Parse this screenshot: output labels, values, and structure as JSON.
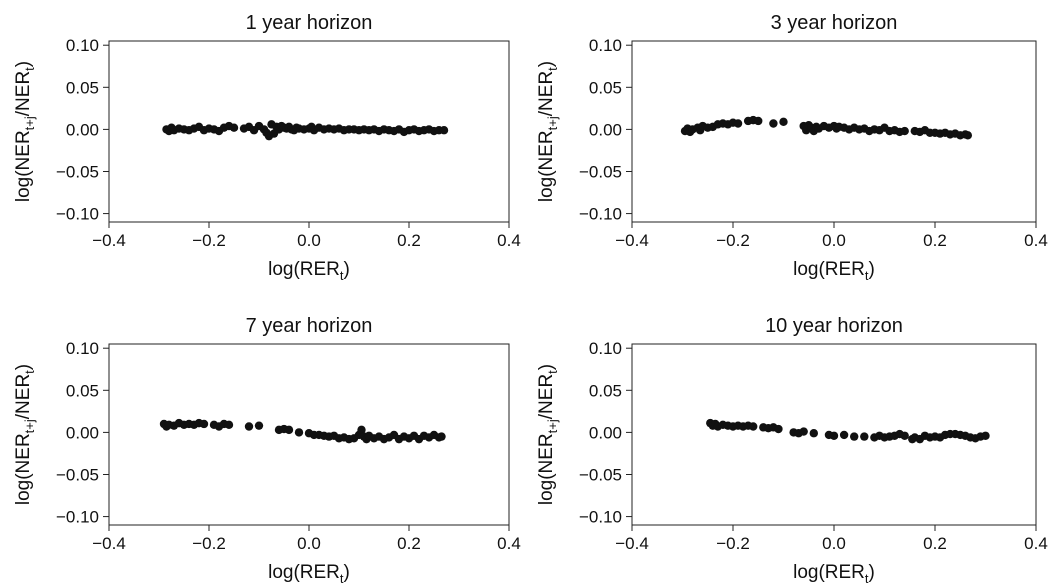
{
  "figure": {
    "xlabel_main": "log(RER",
    "xlabel_sub": "t",
    "xlabel_end": ")",
    "ylabel_main1": "log(NER",
    "ylabel_sub1": "t+j",
    "ylabel_mid": "/NER",
    "ylabel_sub2": "t",
    "ylabel_end": ")"
  },
  "chart_data": [
    {
      "type": "scatter",
      "title": "1 year horizon",
      "xlim": [
        -0.4,
        0.4
      ],
      "ylim": [
        -0.11,
        0.105
      ],
      "xticks": [
        -0.4,
        -0.2,
        0.0,
        0.2,
        0.4
      ],
      "xtick_labels": [
        "−0.4",
        "−0.2",
        "0.0",
        "0.2",
        "0.4"
      ],
      "yticks": [
        0.1,
        0.05,
        0.0,
        -0.05,
        -0.1
      ],
      "ytick_labels": [
        "0.10",
        "0.05",
        "0.00",
        "−0.05",
        "−0.10"
      ],
      "grid": false,
      "points": [
        [
          -0.285,
          0.0
        ],
        [
          -0.28,
          -0.002
        ],
        [
          -0.275,
          0.002
        ],
        [
          -0.27,
          -0.001
        ],
        [
          -0.26,
          0.001
        ],
        [
          -0.25,
          0.0
        ],
        [
          -0.24,
          -0.001
        ],
        [
          -0.23,
          0.001
        ],
        [
          -0.22,
          0.003
        ],
        [
          -0.21,
          -0.001
        ],
        [
          -0.2,
          0.001
        ],
        [
          -0.19,
          0.0
        ],
        [
          -0.18,
          -0.002
        ],
        [
          -0.17,
          0.002
        ],
        [
          -0.16,
          0.004
        ],
        [
          -0.15,
          0.002
        ],
        [
          -0.13,
          0.001
        ],
        [
          -0.12,
          0.003
        ],
        [
          -0.11,
          -0.001
        ],
        [
          -0.1,
          0.004
        ],
        [
          -0.09,
          0.0
        ],
        [
          -0.085,
          -0.004
        ],
        [
          -0.08,
          -0.008
        ],
        [
          -0.075,
          0.006
        ],
        [
          -0.07,
          -0.005
        ],
        [
          -0.065,
          0.003
        ],
        [
          -0.06,
          0.0
        ],
        [
          -0.055,
          0.004
        ],
        [
          -0.05,
          0.002
        ],
        [
          -0.045,
          0.001
        ],
        [
          -0.04,
          0.003
        ],
        [
          -0.035,
          0.0
        ],
        [
          -0.03,
          -0.001
        ],
        [
          -0.025,
          0.002
        ],
        [
          -0.02,
          0.001
        ],
        [
          -0.01,
          0.0
        ],
        [
          0.0,
          0.001
        ],
        [
          0.005,
          0.003
        ],
        [
          0.01,
          -0.001
        ],
        [
          0.02,
          0.002
        ],
        [
          0.03,
          0.0
        ],
        [
          0.04,
          0.001
        ],
        [
          0.05,
          0.0
        ],
        [
          0.06,
          0.001
        ],
        [
          0.07,
          -0.001
        ],
        [
          0.08,
          0.0
        ],
        [
          0.09,
          0.0
        ],
        [
          0.1,
          -0.001
        ],
        [
          0.11,
          0.0
        ],
        [
          0.12,
          -0.001
        ],
        [
          0.13,
          0.0
        ],
        [
          0.14,
          -0.002
        ],
        [
          0.15,
          0.0
        ],
        [
          0.16,
          -0.001
        ],
        [
          0.17,
          -0.002
        ],
        [
          0.18,
          0.0
        ],
        [
          0.19,
          -0.003
        ],
        [
          0.2,
          -0.001
        ],
        [
          0.21,
          0.0
        ],
        [
          0.22,
          -0.002
        ],
        [
          0.23,
          -0.001
        ],
        [
          0.24,
          0.0
        ],
        [
          0.25,
          -0.002
        ],
        [
          0.26,
          -0.001
        ],
        [
          0.27,
          -0.001
        ]
      ]
    },
    {
      "type": "scatter",
      "title": "3 year horizon",
      "xlim": [
        -0.4,
        0.4
      ],
      "ylim": [
        -0.11,
        0.105
      ],
      "xticks": [
        -0.4,
        -0.2,
        0.0,
        0.2,
        0.4
      ],
      "xtick_labels": [
        "−0.4",
        "−0.2",
        "0.0",
        "0.2",
        "0.4"
      ],
      "yticks": [
        0.1,
        0.05,
        0.0,
        -0.05,
        -0.1
      ],
      "ytick_labels": [
        "0.10",
        "0.05",
        "0.00",
        "−0.05",
        "−0.10"
      ],
      "grid": false,
      "points": [
        [
          -0.295,
          -0.002
        ],
        [
          -0.29,
          0.001
        ],
        [
          -0.285,
          -0.003
        ],
        [
          -0.28,
          0.0
        ],
        [
          -0.27,
          0.002
        ],
        [
          -0.265,
          -0.001
        ],
        [
          -0.26,
          0.004
        ],
        [
          -0.25,
          0.002
        ],
        [
          -0.24,
          0.003
        ],
        [
          -0.23,
          0.006
        ],
        [
          -0.22,
          0.007
        ],
        [
          -0.21,
          0.006
        ],
        [
          -0.2,
          0.008
        ],
        [
          -0.19,
          0.007
        ],
        [
          -0.17,
          0.01
        ],
        [
          -0.16,
          0.011
        ],
        [
          -0.15,
          0.01
        ],
        [
          -0.12,
          0.007
        ],
        [
          -0.1,
          0.009
        ],
        [
          -0.06,
          0.004
        ],
        [
          -0.055,
          -0.001
        ],
        [
          -0.05,
          0.005
        ],
        [
          -0.045,
          0.002
        ],
        [
          -0.04,
          -0.002
        ],
        [
          -0.035,
          0.003
        ],
        [
          -0.03,
          0.001
        ],
        [
          -0.02,
          0.004
        ],
        [
          -0.01,
          0.002
        ],
        [
          0.0,
          0.004
        ],
        [
          0.005,
          0.001
        ],
        [
          0.01,
          0.003
        ],
        [
          0.02,
          0.002
        ],
        [
          0.03,
          0.0
        ],
        [
          0.04,
          0.002
        ],
        [
          0.05,
          0.0
        ],
        [
          0.06,
          0.001
        ],
        [
          0.07,
          -0.002
        ],
        [
          0.08,
          0.0
        ],
        [
          0.09,
          -0.001
        ],
        [
          0.1,
          0.002
        ],
        [
          0.11,
          -0.002
        ],
        [
          0.12,
          -0.001
        ],
        [
          0.13,
          -0.003
        ],
        [
          0.14,
          -0.002
        ],
        [
          0.16,
          -0.002
        ],
        [
          0.17,
          -0.003
        ],
        [
          0.18,
          -0.001
        ],
        [
          0.19,
          -0.004
        ],
        [
          0.2,
          -0.004
        ],
        [
          0.21,
          -0.005
        ],
        [
          0.22,
          -0.004
        ],
        [
          0.23,
          -0.006
        ],
        [
          0.24,
          -0.005
        ],
        [
          0.25,
          -0.007
        ],
        [
          0.26,
          -0.006
        ],
        [
          0.265,
          -0.007
        ]
      ]
    },
    {
      "type": "scatter",
      "title": "7 year horizon",
      "xlim": [
        -0.4,
        0.4
      ],
      "ylim": [
        -0.11,
        0.105
      ],
      "xticks": [
        -0.4,
        -0.2,
        0.0,
        0.2,
        0.4
      ],
      "xtick_labels": [
        "−0.4",
        "−0.2",
        "0.0",
        "0.2",
        "0.4"
      ],
      "yticks": [
        0.1,
        0.05,
        0.0,
        -0.05,
        -0.1
      ],
      "ytick_labels": [
        "0.10",
        "0.05",
        "0.00",
        "−0.05",
        "−0.10"
      ],
      "grid": false,
      "points": [
        [
          -0.29,
          0.01
        ],
        [
          -0.285,
          0.007
        ],
        [
          -0.28,
          0.009
        ],
        [
          -0.27,
          0.008
        ],
        [
          -0.26,
          0.011
        ],
        [
          -0.25,
          0.009
        ],
        [
          -0.24,
          0.01
        ],
        [
          -0.23,
          0.009
        ],
        [
          -0.22,
          0.011
        ],
        [
          -0.21,
          0.01
        ],
        [
          -0.19,
          0.009
        ],
        [
          -0.18,
          0.007
        ],
        [
          -0.17,
          0.01
        ],
        [
          -0.16,
          0.009
        ],
        [
          -0.12,
          0.007
        ],
        [
          -0.1,
          0.008
        ],
        [
          -0.06,
          0.003
        ],
        [
          -0.05,
          0.004
        ],
        [
          -0.04,
          0.003
        ],
        [
          -0.02,
          0.0
        ],
        [
          0.0,
          -0.001
        ],
        [
          0.01,
          -0.003
        ],
        [
          0.02,
          -0.003
        ],
        [
          0.03,
          -0.004
        ],
        [
          0.04,
          -0.005
        ],
        [
          0.05,
          -0.004
        ],
        [
          0.06,
          -0.007
        ],
        [
          0.07,
          -0.006
        ],
        [
          0.08,
          -0.008
        ],
        [
          0.09,
          -0.007
        ],
        [
          0.1,
          -0.003
        ],
        [
          0.105,
          0.003
        ],
        [
          0.11,
          -0.005
        ],
        [
          0.115,
          -0.008
        ],
        [
          0.12,
          -0.004
        ],
        [
          0.13,
          -0.007
        ],
        [
          0.14,
          -0.005
        ],
        [
          0.15,
          -0.008
        ],
        [
          0.16,
          -0.006
        ],
        [
          0.17,
          -0.003
        ],
        [
          0.18,
          -0.008
        ],
        [
          0.19,
          -0.005
        ],
        [
          0.2,
          -0.007
        ],
        [
          0.21,
          -0.004
        ],
        [
          0.22,
          -0.008
        ],
        [
          0.23,
          -0.004
        ],
        [
          0.24,
          -0.006
        ],
        [
          0.25,
          -0.003
        ],
        [
          0.26,
          -0.006
        ],
        [
          0.265,
          -0.005
        ]
      ]
    },
    {
      "type": "scatter",
      "title": "10 year horizon",
      "xlim": [
        -0.4,
        0.4
      ],
      "ylim": [
        -0.11,
        0.105
      ],
      "xticks": [
        -0.4,
        -0.2,
        0.0,
        0.2,
        0.4
      ],
      "xtick_labels": [
        "−0.4",
        "−0.2",
        "0.0",
        "0.2",
        "0.4"
      ],
      "yticks": [
        0.1,
        0.05,
        0.0,
        -0.05,
        -0.1
      ],
      "ytick_labels": [
        "0.10",
        "0.05",
        "0.00",
        "−0.05",
        "−0.10"
      ],
      "grid": false,
      "points": [
        [
          -0.245,
          0.011
        ],
        [
          -0.24,
          0.008
        ],
        [
          -0.235,
          0.01
        ],
        [
          -0.23,
          0.007
        ],
        [
          -0.22,
          0.009
        ],
        [
          -0.21,
          0.008
        ],
        [
          -0.2,
          0.007
        ],
        [
          -0.19,
          0.008
        ],
        [
          -0.18,
          0.007
        ],
        [
          -0.17,
          0.008
        ],
        [
          -0.16,
          0.007
        ],
        [
          -0.14,
          0.006
        ],
        [
          -0.13,
          0.005
        ],
        [
          -0.12,
          0.006
        ],
        [
          -0.11,
          0.004
        ],
        [
          -0.08,
          0.0
        ],
        [
          -0.07,
          -0.001
        ],
        [
          -0.06,
          0.001
        ],
        [
          -0.04,
          -0.001
        ],
        [
          -0.01,
          -0.003
        ],
        [
          0.0,
          -0.004
        ],
        [
          0.02,
          -0.003
        ],
        [
          0.04,
          -0.005
        ],
        [
          0.06,
          -0.005
        ],
        [
          0.08,
          -0.006
        ],
        [
          0.09,
          -0.004
        ],
        [
          0.1,
          -0.006
        ],
        [
          0.11,
          -0.005
        ],
        [
          0.12,
          -0.004
        ],
        [
          0.13,
          -0.002
        ],
        [
          0.14,
          -0.004
        ],
        [
          0.155,
          -0.008
        ],
        [
          0.16,
          -0.006
        ],
        [
          0.17,
          -0.008
        ],
        [
          0.18,
          -0.004
        ],
        [
          0.19,
          -0.006
        ],
        [
          0.2,
          -0.005
        ],
        [
          0.21,
          -0.006
        ],
        [
          0.22,
          -0.003
        ],
        [
          0.23,
          -0.002
        ],
        [
          0.24,
          -0.002
        ],
        [
          0.25,
          -0.003
        ],
        [
          0.26,
          -0.004
        ],
        [
          0.27,
          -0.006
        ],
        [
          0.28,
          -0.007
        ],
        [
          0.29,
          -0.005
        ],
        [
          0.3,
          -0.004
        ]
      ]
    }
  ]
}
